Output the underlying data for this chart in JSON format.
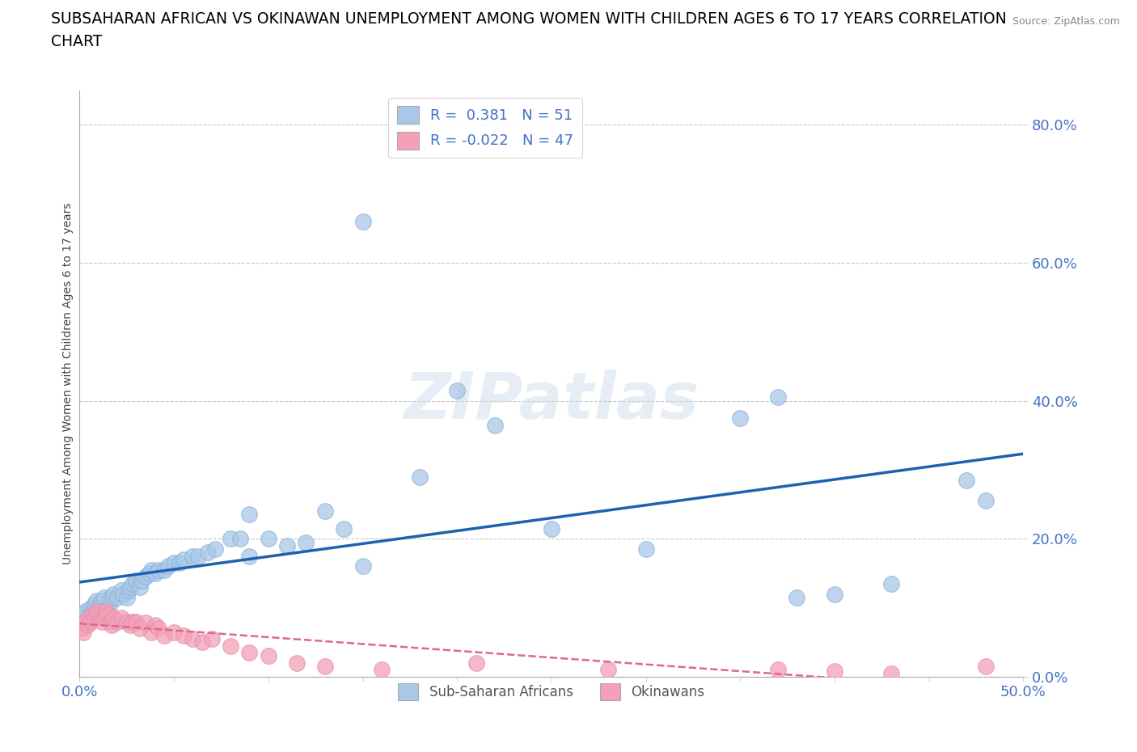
{
  "title_line1": "SUBSAHARAN AFRICAN VS OKINAWAN UNEMPLOYMENT AMONG WOMEN WITH CHILDREN AGES 6 TO 17 YEARS CORRELATION",
  "title_line2": "CHART",
  "source": "Source: ZipAtlas.com",
  "ylabel": "Unemployment Among Women with Children Ages 6 to 17 years",
  "xlim": [
    0.0,
    0.5
  ],
  "ylim": [
    0.0,
    0.85
  ],
  "ytick_positions": [
    0.0,
    0.2,
    0.4,
    0.6,
    0.8
  ],
  "ytick_labels": [
    "0.0%",
    "20.0%",
    "40.0%",
    "60.0%",
    "80.0%"
  ],
  "xtick_positions": [
    0.0,
    0.05,
    0.1,
    0.15,
    0.2,
    0.25,
    0.3,
    0.35,
    0.4,
    0.45,
    0.5
  ],
  "xtick_labels": [
    "0.0%",
    "",
    "",
    "",
    "",
    "",
    "",
    "",
    "",
    "",
    "50.0%"
  ],
  "blue_R": 0.381,
  "blue_N": 51,
  "pink_R": -0.022,
  "pink_N": 47,
  "blue_color": "#a8c8e8",
  "pink_color": "#f4a0b8",
  "blue_line_color": "#2060b0",
  "pink_line_color": "#e06888",
  "background_color": "#ffffff",
  "watermark_text": "ZIPatlas",
  "blue_scatter_x": [
    0.001,
    0.002,
    0.003,
    0.005,
    0.006,
    0.007,
    0.008,
    0.009,
    0.01,
    0.011,
    0.012,
    0.013,
    0.015,
    0.016,
    0.017,
    0.018,
    0.02,
    0.022,
    0.023,
    0.025,
    0.026,
    0.027,
    0.028,
    0.03,
    0.032,
    0.033,
    0.035,
    0.037,
    0.038,
    0.04,
    0.042,
    0.045,
    0.047,
    0.05,
    0.053,
    0.055,
    0.06,
    0.063,
    0.068,
    0.072,
    0.08,
    0.085,
    0.09,
    0.1,
    0.11,
    0.12,
    0.13,
    0.15,
    0.18,
    0.38,
    0.47
  ],
  "blue_scatter_y": [
    0.09,
    0.085,
    0.095,
    0.08,
    0.1,
    0.095,
    0.105,
    0.11,
    0.1,
    0.105,
    0.11,
    0.115,
    0.1,
    0.105,
    0.115,
    0.12,
    0.115,
    0.125,
    0.12,
    0.115,
    0.125,
    0.13,
    0.135,
    0.14,
    0.13,
    0.14,
    0.145,
    0.15,
    0.155,
    0.15,
    0.155,
    0.155,
    0.16,
    0.165,
    0.165,
    0.17,
    0.175,
    0.175,
    0.18,
    0.185,
    0.2,
    0.2,
    0.235,
    0.2,
    0.19,
    0.195,
    0.24,
    0.16,
    0.29,
    0.115,
    0.285
  ],
  "blue_scatter_x2": [
    0.09,
    0.14,
    0.15,
    0.2,
    0.22,
    0.25,
    0.3,
    0.35,
    0.37,
    0.4,
    0.43,
    0.48
  ],
  "blue_scatter_y2": [
    0.175,
    0.215,
    0.66,
    0.415,
    0.365,
    0.215,
    0.185,
    0.375,
    0.405,
    0.12,
    0.135,
    0.255
  ],
  "pink_scatter_x": [
    0.001,
    0.002,
    0.003,
    0.004,
    0.005,
    0.006,
    0.007,
    0.008,
    0.009,
    0.01,
    0.011,
    0.012,
    0.013,
    0.014,
    0.015,
    0.016,
    0.017,
    0.018,
    0.02,
    0.022,
    0.025,
    0.027,
    0.028,
    0.03,
    0.032,
    0.035,
    0.038,
    0.04,
    0.042,
    0.045,
    0.05,
    0.055,
    0.06,
    0.065,
    0.07,
    0.08,
    0.09,
    0.1,
    0.115,
    0.13,
    0.16,
    0.21,
    0.28,
    0.37,
    0.4,
    0.43,
    0.48
  ],
  "pink_scatter_y": [
    0.07,
    0.065,
    0.08,
    0.075,
    0.085,
    0.08,
    0.09,
    0.085,
    0.095,
    0.09,
    0.085,
    0.08,
    0.085,
    0.095,
    0.09,
    0.08,
    0.075,
    0.085,
    0.08,
    0.085,
    0.08,
    0.075,
    0.08,
    0.08,
    0.07,
    0.078,
    0.065,
    0.075,
    0.07,
    0.06,
    0.065,
    0.06,
    0.055,
    0.05,
    0.055,
    0.045,
    0.035,
    0.03,
    0.02,
    0.015,
    0.01,
    0.02,
    0.01,
    0.01,
    0.008,
    0.005,
    0.015
  ]
}
